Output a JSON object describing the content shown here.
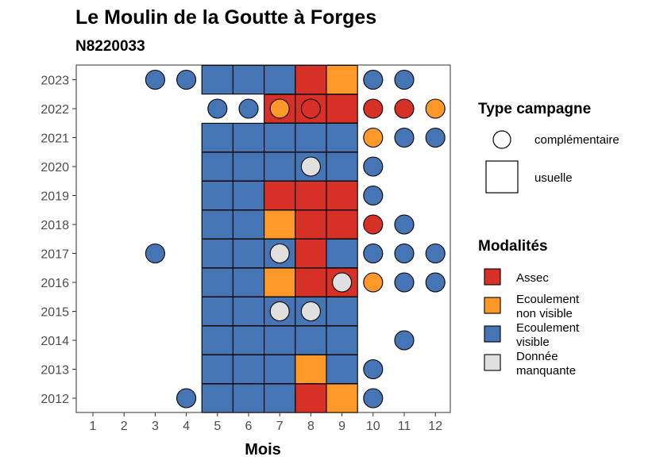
{
  "chart_data": {
    "type": "heatmap",
    "title": "Le Moulin de la Goutte à Forges",
    "subtitle": "N8220033",
    "xlabel": "Mois",
    "ylabel": "",
    "x_ticks": [
      "1",
      "2",
      "3",
      "4",
      "5",
      "6",
      "7",
      "8",
      "9",
      "10",
      "11",
      "12"
    ],
    "y_ticks": [
      "2012",
      "2013",
      "2014",
      "2015",
      "2016",
      "2017",
      "2018",
      "2019",
      "2020",
      "2021",
      "2022",
      "2023"
    ],
    "legend_campagne": {
      "title": "Type campagne",
      "items": [
        {
          "label": "complémentaire",
          "shape": "circle"
        },
        {
          "label": "usuelle",
          "shape": "square"
        }
      ]
    },
    "legend_modalites": {
      "title": "Modalités",
      "items": [
        {
          "key": "A",
          "line1": "Assec",
          "line2": "",
          "color": "#d73027"
        },
        {
          "key": "N",
          "line1": "Ecoulement",
          "line2": "non visible",
          "color": "#fe9929"
        },
        {
          "key": "V",
          "line1": "Ecoulement",
          "line2": "visible",
          "color": "#4575b4"
        },
        {
          "key": "M",
          "line1": "Donnée",
          "line2": "manquante",
          "color": "#e0e0e0"
        }
      ]
    },
    "usuelle": {
      "months": [
        5,
        6,
        7,
        8,
        9
      ],
      "rows": {
        "2012": [
          "V",
          "V",
          "V",
          "A",
          "N"
        ],
        "2013": [
          "V",
          "V",
          "V",
          "N",
          "V"
        ],
        "2014": [
          "V",
          "V",
          "V",
          "V",
          "V"
        ],
        "2015": [
          "V",
          "V",
          "V",
          "V",
          "V"
        ],
        "2016": [
          "V",
          "V",
          "N",
          "A",
          "A"
        ],
        "2017": [
          "V",
          "V",
          "V",
          "A",
          "V"
        ],
        "2018": [
          "V",
          "V",
          "N",
          "A",
          "A"
        ],
        "2019": [
          "V",
          "V",
          "A",
          "A",
          "A"
        ],
        "2020": [
          "V",
          "V",
          "V",
          "V",
          "V"
        ],
        "2021": [
          "V",
          "V",
          "V",
          "V",
          "V"
        ],
        "2022": [
          "",
          "",
          "A",
          "A",
          "A"
        ],
        "2023": [
          "V",
          "V",
          "V",
          "A",
          "N"
        ]
      }
    },
    "complementaire": [
      {
        "year": 2012,
        "month": 4,
        "m": "V"
      },
      {
        "year": 2012,
        "month": 10,
        "m": "V"
      },
      {
        "year": 2013,
        "month": 10,
        "m": "V"
      },
      {
        "year": 2014,
        "month": 11,
        "m": "V"
      },
      {
        "year": 2015,
        "month": 7,
        "m": "M"
      },
      {
        "year": 2015,
        "month": 8,
        "m": "M"
      },
      {
        "year": 2016,
        "month": 9,
        "m": "M"
      },
      {
        "year": 2016,
        "month": 10,
        "m": "N"
      },
      {
        "year": 2016,
        "month": 11,
        "m": "V"
      },
      {
        "year": 2016,
        "month": 12,
        "m": "V"
      },
      {
        "year": 2017,
        "month": 3,
        "m": "V"
      },
      {
        "year": 2017,
        "month": 7,
        "m": "M"
      },
      {
        "year": 2017,
        "month": 10,
        "m": "V"
      },
      {
        "year": 2017,
        "month": 11,
        "m": "V"
      },
      {
        "year": 2017,
        "month": 12,
        "m": "V"
      },
      {
        "year": 2018,
        "month": 10,
        "m": "A"
      },
      {
        "year": 2018,
        "month": 11,
        "m": "V"
      },
      {
        "year": 2019,
        "month": 10,
        "m": "V"
      },
      {
        "year": 2020,
        "month": 8,
        "m": "M"
      },
      {
        "year": 2020,
        "month": 10,
        "m": "V"
      },
      {
        "year": 2021,
        "month": 10,
        "m": "N"
      },
      {
        "year": 2021,
        "month": 11,
        "m": "V"
      },
      {
        "year": 2021,
        "month": 12,
        "m": "V"
      },
      {
        "year": 2022,
        "month": 5,
        "m": "V"
      },
      {
        "year": 2022,
        "month": 6,
        "m": "V"
      },
      {
        "year": 2022,
        "month": 7,
        "m": "N"
      },
      {
        "year": 2022,
        "month": 8,
        "m": "A"
      },
      {
        "year": 2022,
        "month": 10,
        "m": "A"
      },
      {
        "year": 2022,
        "month": 11,
        "m": "A"
      },
      {
        "year": 2022,
        "month": 12,
        "m": "N"
      },
      {
        "year": 2023,
        "month": 3,
        "m": "V"
      },
      {
        "year": 2023,
        "month": 4,
        "m": "V"
      },
      {
        "year": 2023,
        "month": 10,
        "m": "V"
      },
      {
        "year": 2023,
        "month": 11,
        "m": "V"
      }
    ]
  }
}
